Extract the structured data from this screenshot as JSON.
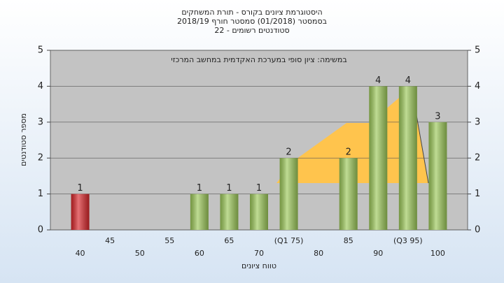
{
  "chart_data": {
    "type": "bar",
    "title": [
      "היסטוגרמת ציונים בקורס - תורת המשחקים",
      "בסמסטר  (01/2018)  סמסטר חורף 2018/19",
      "סטודנטים רשומים - 22"
    ],
    "annotation": "במשימה: ציון סופי במערכת האקדמית במחשב המרכזי",
    "x_label": "טווח ציונים",
    "y_label": "מספר סטודנטים",
    "categories": [
      "40",
      "45",
      "50",
      "55",
      "60",
      "65",
      "70",
      "(Q1 75)",
      "80",
      "85",
      "90",
      "(Q3 95)",
      "100"
    ],
    "values": [
      1,
      0,
      0,
      0,
      1,
      1,
      1,
      2,
      0,
      2,
      4,
      4,
      3
    ],
    "colors": [
      "#d9262b",
      "#9dc95a",
      "#9dc95a",
      "#9dc95a",
      "#9dc95a",
      "#9dc95a",
      "#9dc95a",
      "#9dc95a",
      "#9dc95a",
      "#9dc95a",
      "#9dc95a",
      "#9dc95a",
      "#9dc95a"
    ],
    "ylim": [
      0,
      5
    ],
    "yticks": [
      0,
      1,
      2,
      3,
      4,
      5
    ],
    "grid": true
  }
}
